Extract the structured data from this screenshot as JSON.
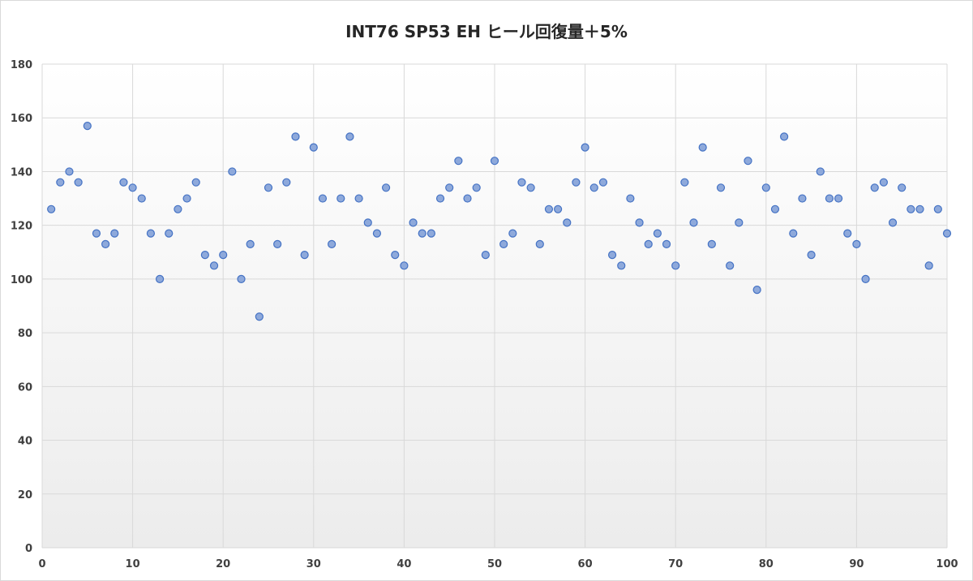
{
  "chart_data": {
    "type": "scatter",
    "title": "INT76 SP53 EH ヒール回復量＋5%",
    "xlabel": "",
    "ylabel": "",
    "xlim": [
      0,
      100
    ],
    "ylim": [
      0,
      180
    ],
    "x_ticks": [
      0,
      10,
      20,
      30,
      40,
      50,
      60,
      70,
      80,
      90,
      100
    ],
    "y_ticks": [
      0,
      20,
      40,
      60,
      80,
      100,
      120,
      140,
      160,
      180
    ],
    "grid": true,
    "legend": "none",
    "marker_fill": "#8ea9db",
    "marker_edge": "#4472c4",
    "x": [
      1,
      2,
      3,
      4,
      5,
      6,
      7,
      8,
      9,
      10,
      11,
      12,
      13,
      14,
      15,
      16,
      17,
      18,
      19,
      20,
      21,
      22,
      23,
      24,
      25,
      26,
      27,
      28,
      29,
      30,
      31,
      32,
      33,
      34,
      35,
      36,
      37,
      38,
      39,
      40,
      41,
      42,
      43,
      44,
      45,
      46,
      47,
      48,
      49,
      50,
      51,
      52,
      53,
      54,
      55,
      56,
      57,
      58,
      59,
      60,
      61,
      62,
      63,
      64,
      65,
      66,
      67,
      68,
      69,
      70,
      71,
      72,
      73,
      74,
      75,
      76,
      77,
      78,
      79,
      80,
      81,
      82,
      83,
      84,
      85,
      86,
      87,
      88,
      89,
      90,
      91,
      92,
      93,
      94,
      95,
      96,
      97,
      98,
      99,
      100
    ],
    "y": [
      126,
      136,
      140,
      136,
      157,
      117,
      113,
      117,
      136,
      134,
      130,
      117,
      100,
      117,
      126,
      130,
      136,
      109,
      105,
      109,
      140,
      100,
      113,
      86,
      134,
      113,
      136,
      153,
      109,
      149,
      130,
      113,
      130,
      153,
      130,
      121,
      117,
      134,
      109,
      105,
      121,
      117,
      117,
      130,
      134,
      144,
      130,
      134,
      109,
      144,
      113,
      117,
      136,
      134,
      113,
      126,
      126,
      121,
      136,
      149,
      134,
      136,
      109,
      105,
      130,
      121,
      113,
      117,
      113,
      105,
      136,
      121,
      149,
      113,
      134,
      105,
      121,
      144,
      96,
      134,
      126,
      153,
      117,
      130,
      109,
      140,
      130,
      130,
      117,
      113,
      100,
      134,
      136,
      121,
      134,
      126,
      126,
      105,
      126,
      117
    ]
  }
}
